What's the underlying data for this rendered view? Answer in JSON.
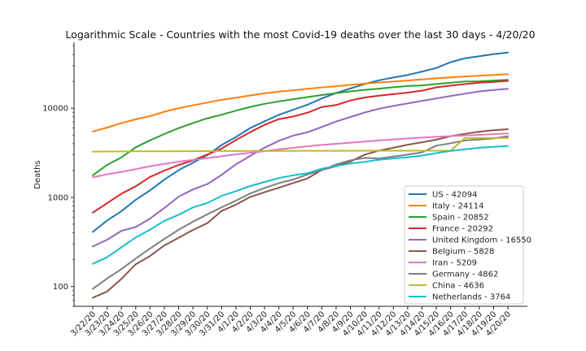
{
  "chart_data": {
    "type": "line",
    "title": "Logarithmic Scale - Countries with the most Covid-19 deaths over the last 30 days - 4/20/20",
    "xlabel": "",
    "ylabel": "Deaths",
    "yscale": "log",
    "ylim": [
      60,
      55000
    ],
    "yticks": [
      100,
      1000,
      10000
    ],
    "ytick_labels": [
      "100",
      "1000",
      "10000"
    ],
    "grid": false,
    "legend_position": "lower-right",
    "x": [
      "3/22/20",
      "3/23/20",
      "3/24/20",
      "3/25/20",
      "3/26/20",
      "3/27/20",
      "3/28/20",
      "3/29/20",
      "3/30/20",
      "3/31/20",
      "4/1/20",
      "4/2/20",
      "4/3/20",
      "4/4/20",
      "4/5/20",
      "4/6/20",
      "4/7/20",
      "4/8/20",
      "4/9/20",
      "4/10/20",
      "4/11/20",
      "4/12/20",
      "4/13/20",
      "4/14/20",
      "4/15/20",
      "4/16/20",
      "4/17/20",
      "4/18/20",
      "4/19/20",
      "4/20/20"
    ],
    "series": [
      {
        "name": "US",
        "legend": "US - 42094",
        "color": "#1f77b4",
        "values": [
          410,
          550,
          700,
          940,
          1200,
          1580,
          2020,
          2450,
          2980,
          3870,
          4760,
          6000,
          7130,
          8430,
          9620,
          10940,
          12880,
          14800,
          16700,
          18700,
          20600,
          22100,
          23600,
          25800,
          28300,
          32900,
          36300,
          38300,
          40500,
          42094
        ]
      },
      {
        "name": "Italy",
        "legend": "Italy - 24114",
        "color": "#ff7f0e",
        "values": [
          5476,
          6077,
          6820,
          7503,
          8165,
          9134,
          10023,
          10779,
          11591,
          12428,
          13155,
          13915,
          14681,
          15362,
          15887,
          16523,
          17127,
          17669,
          18279,
          18849,
          19468,
          19899,
          20465,
          21067,
          21645,
          22170,
          22745,
          23227,
          23660,
          24114
        ]
      },
      {
        "name": "Spain",
        "legend": "Spain - 20852",
        "color": "#2ca02c",
        "values": [
          1772,
          2311,
          2808,
          3647,
          4365,
          5138,
          5982,
          6803,
          7716,
          8464,
          9387,
          10348,
          11198,
          11947,
          12641,
          13341,
          14045,
          14792,
          15447,
          16081,
          16606,
          17209,
          17756,
          18056,
          18708,
          19315,
          20002,
          20043,
          20453,
          20852
        ]
      },
      {
        "name": "France",
        "legend": "France - 20292",
        "color": "#d62728",
        "values": [
          674,
          860,
          1100,
          1331,
          1696,
          1995,
          2314,
          2606,
          3024,
          3523,
          4403,
          5387,
          6507,
          7560,
          8078,
          8911,
          10328,
          10869,
          12210,
          13197,
          13832,
          14393,
          14967,
          15729,
          17167,
          17920,
          18681,
          19323,
          19718,
          20292
        ]
      },
      {
        "name": "United Kingdom",
        "legend": "United Kingdom - 16550",
        "color": "#9467bd",
        "values": [
          281,
          335,
          422,
          465,
          578,
          759,
          1019,
          1228,
          1408,
          1789,
          2352,
          2921,
          3605,
          4313,
          4934,
          5373,
          6159,
          7097,
          7978,
          8958,
          9875,
          10612,
          11329,
          12107,
          12868,
          13729,
          14576,
          15464,
          16060,
          16550
        ]
      },
      {
        "name": "Belgium",
        "legend": "Belgium - 5828",
        "color": "#8c564b",
        "values": [
          75,
          88,
          122,
          178,
          220,
          289,
          353,
          431,
          513,
          705,
          828,
          1011,
          1143,
          1283,
          1447,
          1632,
          2035,
          2240,
          2523,
          3019,
          3346,
          3600,
          3903,
          4157,
          4440,
          4857,
          5163,
          5453,
          5683,
          5828
        ]
      },
      {
        "name": "Iran",
        "legend": "Iran - 5209",
        "color": "#e377c2",
        "values": [
          1685,
          1812,
          1934,
          2077,
          2234,
          2378,
          2517,
          2640,
          2757,
          2898,
          3036,
          3160,
          3294,
          3452,
          3603,
          3739,
          3872,
          3993,
          4110,
          4232,
          4357,
          4474,
          4585,
          4683,
          4777,
          4869,
          4958,
          5031,
          5118,
          5209
        ]
      },
      {
        "name": "Germany",
        "legend": "Germany - 4862",
        "color": "#7f7f7f",
        "values": [
          94,
          123,
          157,
          206,
          267,
          342,
          433,
          533,
          645,
          775,
          920,
          1107,
          1275,
          1444,
          1584,
          1810,
          2016,
          2349,
          2607,
          2767,
          2736,
          2871,
          3022,
          3194,
          3804,
          4052,
          4352,
          4459,
          4586,
          4862
        ]
      },
      {
        "name": "China",
        "legend": "China - 4636",
        "color": "#bcbd22",
        "values": [
          3261,
          3270,
          3277,
          3281,
          3285,
          3291,
          3296,
          3299,
          3304,
          3308,
          3309,
          3316,
          3322,
          3326,
          3330,
          3331,
          3333,
          3335,
          3335,
          3337,
          3339,
          3339,
          3341,
          3342,
          3342,
          3342,
          4632,
          4632,
          4632,
          4636
        ]
      },
      {
        "name": "Netherlands",
        "legend": "Netherlands - 3764",
        "color": "#17becf",
        "values": [
          180,
          213,
          276,
          356,
          434,
          546,
          639,
          771,
          864,
          1039,
          1173,
          1339,
          1487,
          1651,
          1766,
          1867,
          2101,
          2248,
          2396,
          2511,
          2643,
          2737,
          2823,
          2945,
          3134,
          3315,
          3459,
          3601,
          3684,
          3764
        ]
      }
    ]
  }
}
